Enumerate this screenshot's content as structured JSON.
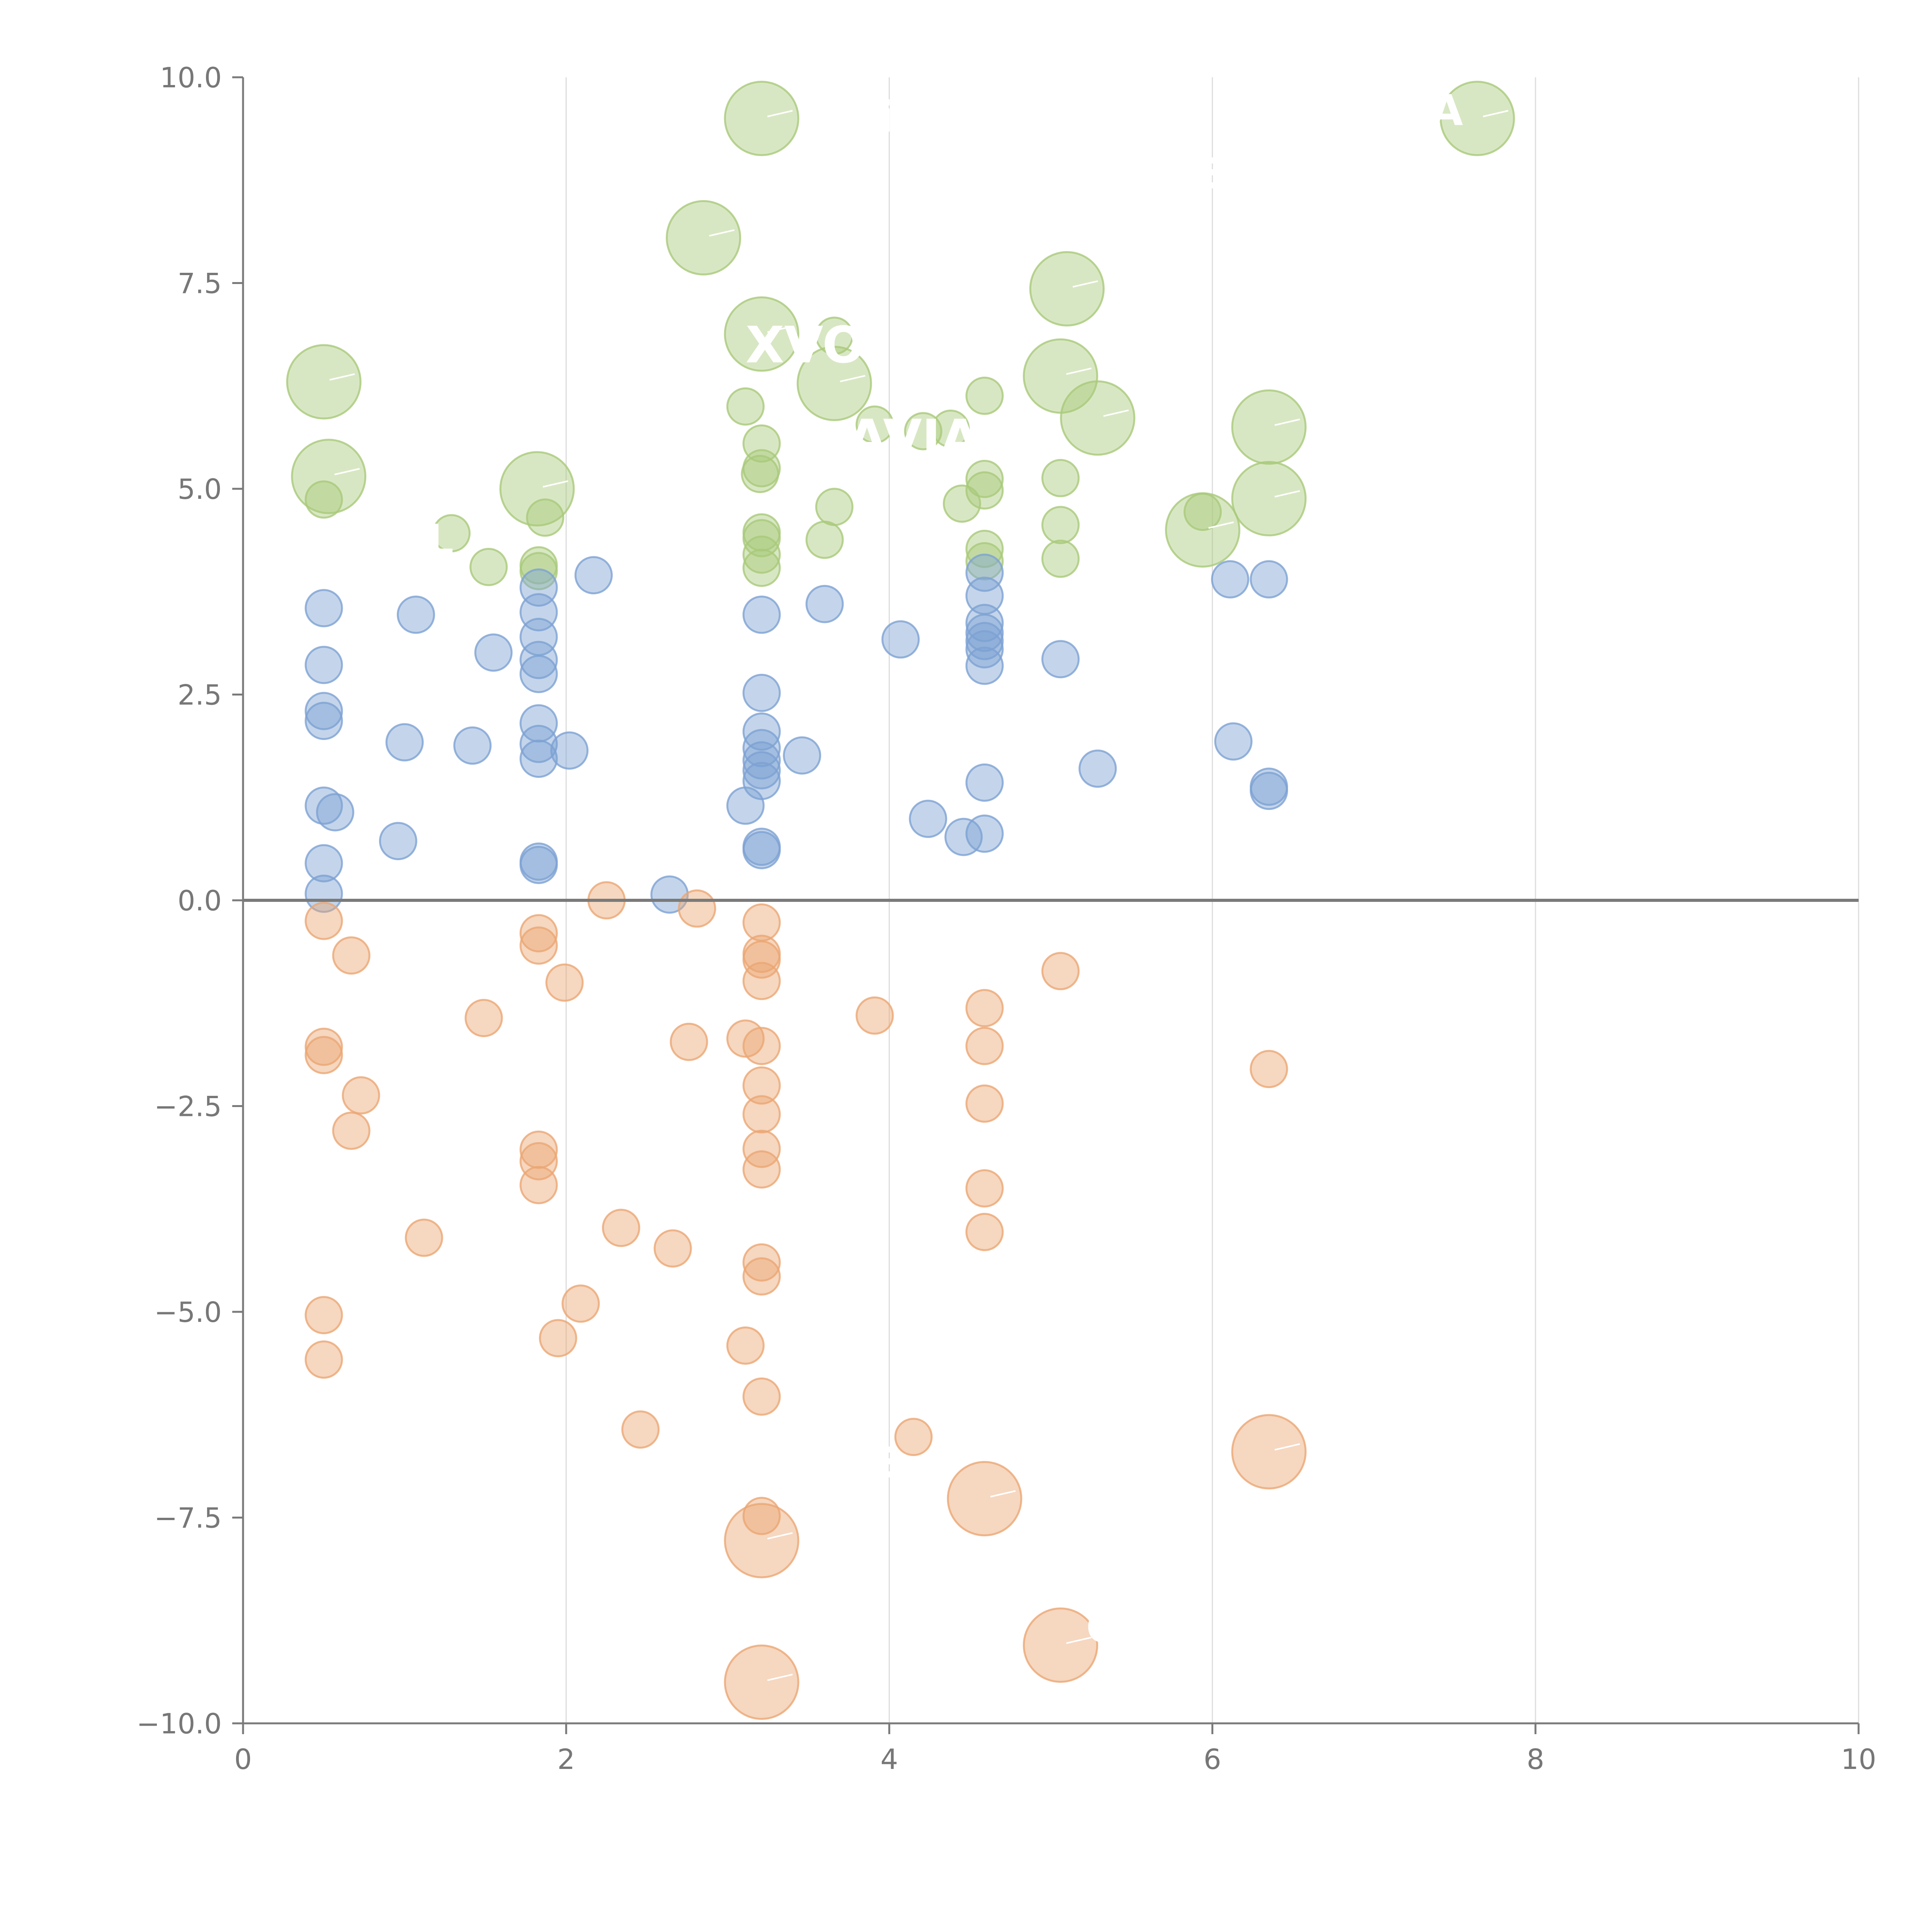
{
  "chart_data": {
    "type": "scatter",
    "title": "",
    "xlabel": "",
    "ylabel": "",
    "xlim": [
      0,
      10
    ],
    "ylim": [
      -10,
      10
    ],
    "grid": "vertical",
    "xticks": [
      0,
      2,
      4,
      6,
      8,
      10
    ],
    "yticks": [
      -10,
      -7.5,
      -5,
      -2.5,
      0,
      2.5,
      5,
      7.5,
      10
    ],
    "xtick_labels": [
      "0",
      "2",
      "4",
      "6",
      "8",
      "10"
    ],
    "ytick_labels": [
      "−10.0",
      "−7.5",
      "−5.0",
      "−2.5",
      "0.0",
      "2.5",
      "5.0",
      "7.5",
      "10.0"
    ],
    "series": [
      {
        "name": "green",
        "color": "#a9c97a",
        "points": [
          [
            3.21,
            9.5,
            "L"
          ],
          [
            7.64,
            9.5,
            "L"
          ],
          [
            2.85,
            8.05,
            "L"
          ],
          [
            5.1,
            7.43,
            "L"
          ],
          [
            3.21,
            6.88,
            "L"
          ],
          [
            0.5,
            6.3,
            "L"
          ],
          [
            3.66,
            6.28,
            "L"
          ],
          [
            5.06,
            6.37,
            "L"
          ],
          [
            5.29,
            5.86,
            "L"
          ],
          [
            6.35,
            5.75,
            "L"
          ],
          [
            0.53,
            5.15,
            "L"
          ],
          [
            1.82,
            5.0,
            "L"
          ],
          [
            6.35,
            4.88,
            "L"
          ],
          [
            5.94,
            4.5,
            "L"
          ],
          [
            3.66,
            6.86,
            "S"
          ],
          [
            3.11,
            6.0,
            "S"
          ],
          [
            3.21,
            5.55,
            "S"
          ],
          [
            3.91,
            5.78,
            "S"
          ],
          [
            4.21,
            5.7,
            "S"
          ],
          [
            4.38,
            5.73,
            "S"
          ],
          [
            4.59,
            6.13,
            "S"
          ],
          [
            3.21,
            5.25,
            "S"
          ],
          [
            3.2,
            5.18,
            "S"
          ],
          [
            4.59,
            5.12,
            "S"
          ],
          [
            4.59,
            4.98,
            "S"
          ],
          [
            5.06,
            5.13,
            "S"
          ],
          [
            0.5,
            4.87,
            "S"
          ],
          [
            1.87,
            4.65,
            "S"
          ],
          [
            3.66,
            4.78,
            "S"
          ],
          [
            4.45,
            4.82,
            "S"
          ],
          [
            5.06,
            4.56,
            "S"
          ],
          [
            5.94,
            4.72,
            "S"
          ],
          [
            1.29,
            4.46,
            "S"
          ],
          [
            3.21,
            4.47,
            "S"
          ],
          [
            3.21,
            4.4,
            "S"
          ],
          [
            3.6,
            4.38,
            "S"
          ],
          [
            4.59,
            4.27,
            "S"
          ],
          [
            3.21,
            4.2,
            "S"
          ],
          [
            5.06,
            4.15,
            "S"
          ],
          [
            1.52,
            4.05,
            "S"
          ],
          [
            1.83,
            4.07,
            "S"
          ],
          [
            3.21,
            4.04,
            "S"
          ],
          [
            4.59,
            4.12,
            "S"
          ],
          [
            1.83,
            4.0,
            "S"
          ]
        ]
      },
      {
        "name": "blue",
        "color": "#7da1d3",
        "points": [
          [
            0.5,
            3.55,
            "S"
          ],
          [
            1.07,
            3.47,
            "S"
          ],
          [
            1.83,
            3.8,
            "S"
          ],
          [
            1.83,
            3.5,
            "S"
          ],
          [
            2.17,
            3.95,
            "S"
          ],
          [
            3.21,
            3.47,
            "S"
          ],
          [
            3.6,
            3.6,
            "S"
          ],
          [
            4.59,
            3.98,
            "S"
          ],
          [
            4.59,
            3.7,
            "S"
          ],
          [
            6.11,
            3.9,
            "S"
          ],
          [
            6.35,
            3.9,
            "S"
          ],
          [
            1.55,
            3.01,
            "S"
          ],
          [
            1.83,
            3.2,
            "S"
          ],
          [
            1.83,
            2.92,
            "S"
          ],
          [
            1.83,
            2.75,
            "S"
          ],
          [
            0.5,
            2.86,
            "S"
          ],
          [
            4.07,
            3.17,
            "S"
          ],
          [
            4.59,
            3.37,
            "S"
          ],
          [
            4.59,
            3.25,
            "S"
          ],
          [
            4.59,
            3.15,
            "S"
          ],
          [
            4.59,
            3.05,
            "S"
          ],
          [
            4.59,
            2.85,
            "S"
          ],
          [
            5.06,
            2.93,
            "S"
          ],
          [
            3.21,
            2.52,
            "S"
          ],
          [
            0.5,
            2.3,
            "S"
          ],
          [
            0.5,
            2.18,
            "S"
          ],
          [
            1.83,
            2.15,
            "S"
          ],
          [
            3.21,
            2.05,
            "S"
          ],
          [
            1.0,
            1.92,
            "S"
          ],
          [
            1.42,
            1.88,
            "S"
          ],
          [
            1.83,
            1.9,
            "S"
          ],
          [
            1.83,
            1.72,
            "S"
          ],
          [
            2.02,
            1.82,
            "S"
          ],
          [
            3.21,
            1.85,
            "S"
          ],
          [
            3.21,
            1.7,
            "S"
          ],
          [
            3.21,
            1.58,
            "S"
          ],
          [
            3.21,
            1.45,
            "S"
          ],
          [
            3.46,
            1.76,
            "S"
          ],
          [
            6.13,
            1.93,
            "S"
          ],
          [
            5.29,
            1.6,
            "S"
          ],
          [
            4.59,
            1.43,
            "S"
          ],
          [
            6.35,
            1.38,
            "S"
          ],
          [
            6.35,
            1.33,
            "S"
          ],
          [
            0.5,
            1.15,
            "S"
          ],
          [
            0.57,
            1.07,
            "S"
          ],
          [
            3.11,
            1.15,
            "S"
          ],
          [
            4.24,
            0.99,
            "S"
          ],
          [
            4.59,
            0.81,
            "S"
          ],
          [
            4.46,
            0.77,
            "S"
          ],
          [
            0.96,
            0.72,
            "S"
          ],
          [
            3.21,
            0.65,
            "S"
          ],
          [
            3.21,
            0.61,
            "S"
          ],
          [
            0.5,
            0.45,
            "S"
          ],
          [
            1.83,
            0.47,
            "S"
          ],
          [
            1.83,
            0.43,
            "S"
          ],
          [
            0.5,
            0.08,
            "S"
          ],
          [
            2.64,
            0.07,
            "S"
          ]
        ]
      },
      {
        "name": "orange",
        "color": "#eba673",
        "points": [
          [
            2.25,
            0.0,
            "S"
          ],
          [
            2.81,
            -0.1,
            "S"
          ],
          [
            0.5,
            -0.25,
            "S"
          ],
          [
            1.83,
            -0.4,
            "S"
          ],
          [
            1.83,
            -0.55,
            "S"
          ],
          [
            3.21,
            -0.27,
            "S"
          ],
          [
            3.21,
            -0.65,
            "S"
          ],
          [
            3.21,
            -0.72,
            "S"
          ],
          [
            0.67,
            -0.67,
            "S"
          ],
          [
            5.06,
            -0.86,
            "S"
          ],
          [
            1.99,
            -1.0,
            "S"
          ],
          [
            3.21,
            -0.98,
            "S"
          ],
          [
            1.49,
            -1.43,
            "S"
          ],
          [
            3.91,
            -1.4,
            "S"
          ],
          [
            4.59,
            -1.31,
            "S"
          ],
          [
            2.76,
            -1.72,
            "S"
          ],
          [
            3.11,
            -1.68,
            "S"
          ],
          [
            3.21,
            -1.77,
            "S"
          ],
          [
            4.59,
            -1.77,
            "S"
          ],
          [
            0.5,
            -1.78,
            "S"
          ],
          [
            0.5,
            -1.88,
            "S"
          ],
          [
            6.35,
            -2.05,
            "S"
          ],
          [
            3.21,
            -2.25,
            "S"
          ],
          [
            0.73,
            -2.37,
            "S"
          ],
          [
            4.59,
            -2.47,
            "S"
          ],
          [
            3.21,
            -2.6,
            "S"
          ],
          [
            0.67,
            -2.8,
            "S"
          ],
          [
            1.83,
            -3.03,
            "S"
          ],
          [
            3.21,
            -3.02,
            "S"
          ],
          [
            1.83,
            -3.17,
            "S"
          ],
          [
            3.21,
            -3.27,
            "S"
          ],
          [
            1.83,
            -3.46,
            "S"
          ],
          [
            4.59,
            -3.5,
            "S"
          ],
          [
            2.34,
            -3.98,
            "S"
          ],
          [
            4.59,
            -4.03,
            "S"
          ],
          [
            1.12,
            -4.1,
            "S"
          ],
          [
            2.66,
            -4.23,
            "S"
          ],
          [
            3.21,
            -4.4,
            "S"
          ],
          [
            3.21,
            -4.57,
            "S"
          ],
          [
            2.09,
            -4.9,
            "S"
          ],
          [
            0.5,
            -5.04,
            "S"
          ],
          [
            1.95,
            -5.32,
            "S"
          ],
          [
            3.11,
            -5.41,
            "S"
          ],
          [
            0.5,
            -5.58,
            "S"
          ],
          [
            3.21,
            -6.03,
            "S"
          ],
          [
            2.46,
            -6.43,
            "S"
          ],
          [
            4.15,
            -6.52,
            "S"
          ],
          [
            3.21,
            -7.48,
            "S"
          ],
          [
            6.35,
            -6.7,
            "L"
          ],
          [
            4.59,
            -7.27,
            "L"
          ],
          [
            3.21,
            -7.78,
            "L"
          ],
          [
            5.06,
            -9.05,
            "L"
          ],
          [
            3.21,
            -9.5,
            "L"
          ]
        ]
      }
    ],
    "annotations": [
      {
        "text": "XVO",
        "x": 3.48,
        "y": 6.75
      },
      {
        "text": "AVIA",
        "x": 4.15,
        "y": 5.62
      },
      {
        "text": "L",
        "x": 1.22,
        "y": 4.38
      },
      {
        "text": "i",
        "x": 3.98,
        "y": 9.52
      },
      {
        "text": "E",
        "x": 6.0,
        "y": 8.83
      },
      {
        "text": "A",
        "x": 7.45,
        "y": 9.6
      },
      {
        "text": "E",
        "x": 3.98,
        "y": -6.83
      },
      {
        "text": "O",
        "x": 5.33,
        "y": -8.83
      }
    ]
  }
}
